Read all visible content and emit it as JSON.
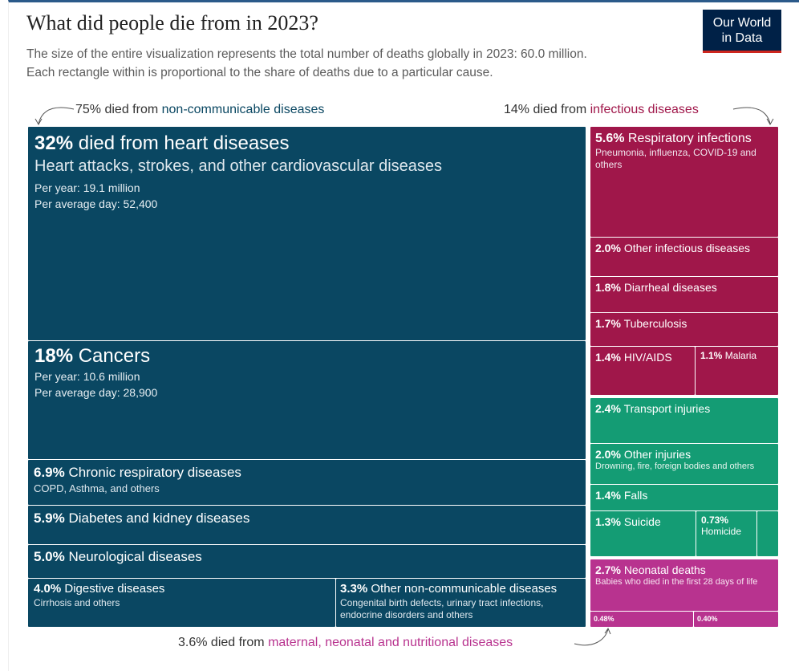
{
  "title": "What did people die from in 2023?",
  "subtitle": [
    "The size of the entire visualization represents the total number of deaths globally in 2023: 60.0 million.",
    "Each rectangle within is proportional to the share of deaths due to a particular cause."
  ],
  "logo": "Our World in Data",
  "annotations": {
    "ncd": {
      "pct": "75%",
      "text": " died from ",
      "group": "non-communicable diseases",
      "color": "#0a4762"
    },
    "inf": {
      "pct": "14%",
      "text": " died from ",
      "group": "infectious diseases",
      "color": "#a0174a"
    },
    "mat": {
      "pct": "3.6%",
      "text": " died from ",
      "group": "maternal, neonatal and nutritional diseases",
      "color": "#b8338f"
    }
  },
  "colors": {
    "non_communicable": "#0a4762",
    "infectious": "#a0174a",
    "injuries": "#149c74",
    "maternal": "#b8338f"
  },
  "chart_data": {
    "type": "treemap",
    "total": "60.0 million",
    "items": [
      {
        "group": "non-communicable",
        "pct": "32%",
        "label": "died from heart diseases",
        "desc": "Heart attacks, strokes, and other cardiovascular diseases",
        "per_year": "Per year: 19.1 million",
        "per_day": "Per average day: 52,400",
        "value": 32
      },
      {
        "group": "non-communicable",
        "pct": "18%",
        "label": "Cancers",
        "per_year": "Per year: 10.6 million",
        "per_day": "Per average day: 28,900",
        "value": 18
      },
      {
        "group": "non-communicable",
        "pct": "6.9%",
        "label": "Chronic respiratory diseases",
        "desc": "COPD, Asthma, and others",
        "value": 6.9
      },
      {
        "group": "non-communicable",
        "pct": "5.9%",
        "label": "Diabetes and kidney diseases",
        "value": 5.9
      },
      {
        "group": "non-communicable",
        "pct": "5.0%",
        "label": "Neurological diseases",
        "value": 5.0
      },
      {
        "group": "non-communicable",
        "pct": "4.0%",
        "label": "Digestive diseases",
        "desc": "Cirrhosis and others",
        "value": 4.0
      },
      {
        "group": "non-communicable",
        "pct": "3.3%",
        "label": "Other non-communicable diseases",
        "desc": "Congenital birth defects, urinary tract infections, endocrine disorders and others",
        "value": 3.3
      },
      {
        "group": "infectious",
        "pct": "5.6%",
        "label": "Respiratory infections",
        "desc": "Pneumonia, influenza, COVID-19 and others",
        "value": 5.6
      },
      {
        "group": "infectious",
        "pct": "2.0%",
        "label": "Other infectious diseases",
        "value": 2.0
      },
      {
        "group": "infectious",
        "pct": "1.8%",
        "label": "Diarrheal diseases",
        "value": 1.8
      },
      {
        "group": "infectious",
        "pct": "1.7%",
        "label": "Tuberculosis",
        "value": 1.7
      },
      {
        "group": "infectious",
        "pct": "1.4%",
        "label": "HIV/AIDS",
        "value": 1.4
      },
      {
        "group": "infectious",
        "pct": "1.1%",
        "label": "Malaria",
        "value": 1.1
      },
      {
        "group": "injuries",
        "pct": "2.4%",
        "label": "Transport injuries",
        "value": 2.4
      },
      {
        "group": "injuries",
        "pct": "2.0%",
        "label": "Other injuries",
        "desc": "Drowning, fire, foreign bodies and others",
        "value": 2.0
      },
      {
        "group": "injuries",
        "pct": "1.4%",
        "label": "Falls",
        "value": 1.4
      },
      {
        "group": "injuries",
        "pct": "1.3%",
        "label": "Suicide",
        "value": 1.3
      },
      {
        "group": "injuries",
        "pct": "0.73%",
        "label": "Homicide",
        "value": 0.73
      },
      {
        "group": "maternal",
        "pct": "2.7%",
        "label": "Neonatal deaths",
        "desc": "Babies who died in the first 28 days of life",
        "value": 2.7
      },
      {
        "group": "maternal",
        "pct": "0.48%",
        "label": "",
        "value": 0.48
      },
      {
        "group": "maternal",
        "pct": "0.40%",
        "label": "",
        "value": 0.4
      }
    ]
  }
}
